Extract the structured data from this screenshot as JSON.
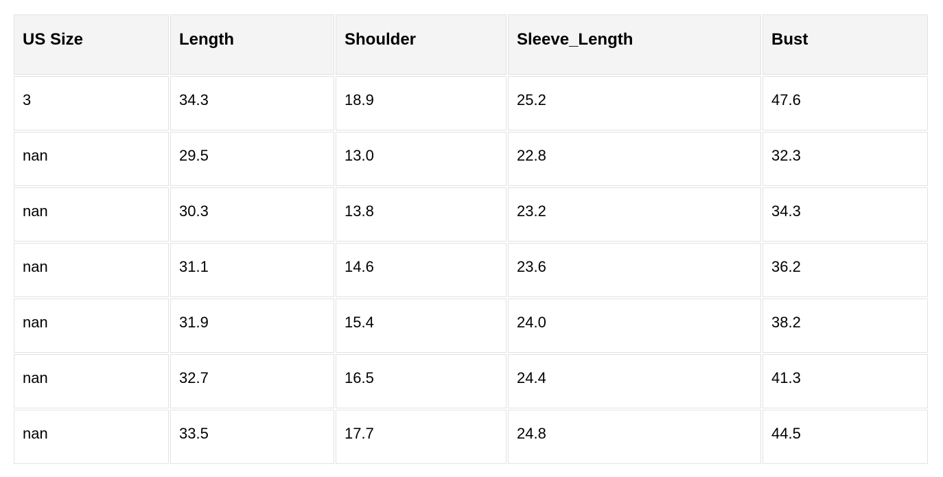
{
  "colors": {
    "header_bg": "#f4f4f4",
    "body_bg": "#ffffff",
    "cell_border": "#e2e2e2",
    "text": "#000000"
  },
  "chart_data": {
    "type": "table",
    "title": "",
    "columns": [
      "US Size",
      "Length",
      "Shoulder",
      "Sleeve_Length",
      "Bust"
    ],
    "rows": [
      [
        "3",
        "34.3",
        "18.9",
        "25.2",
        "47.6"
      ],
      [
        "nan",
        "29.5",
        "13.0",
        "22.8",
        "32.3"
      ],
      [
        "nan",
        "30.3",
        "13.8",
        "23.2",
        "34.3"
      ],
      [
        "nan",
        "31.1",
        "14.6",
        "23.6",
        "36.2"
      ],
      [
        "nan",
        "31.9",
        "15.4",
        "24.0",
        "38.2"
      ],
      [
        "nan",
        "32.7",
        "16.5",
        "24.4",
        "41.3"
      ],
      [
        "nan",
        "33.5",
        "17.7",
        "24.8",
        "44.5"
      ]
    ]
  }
}
